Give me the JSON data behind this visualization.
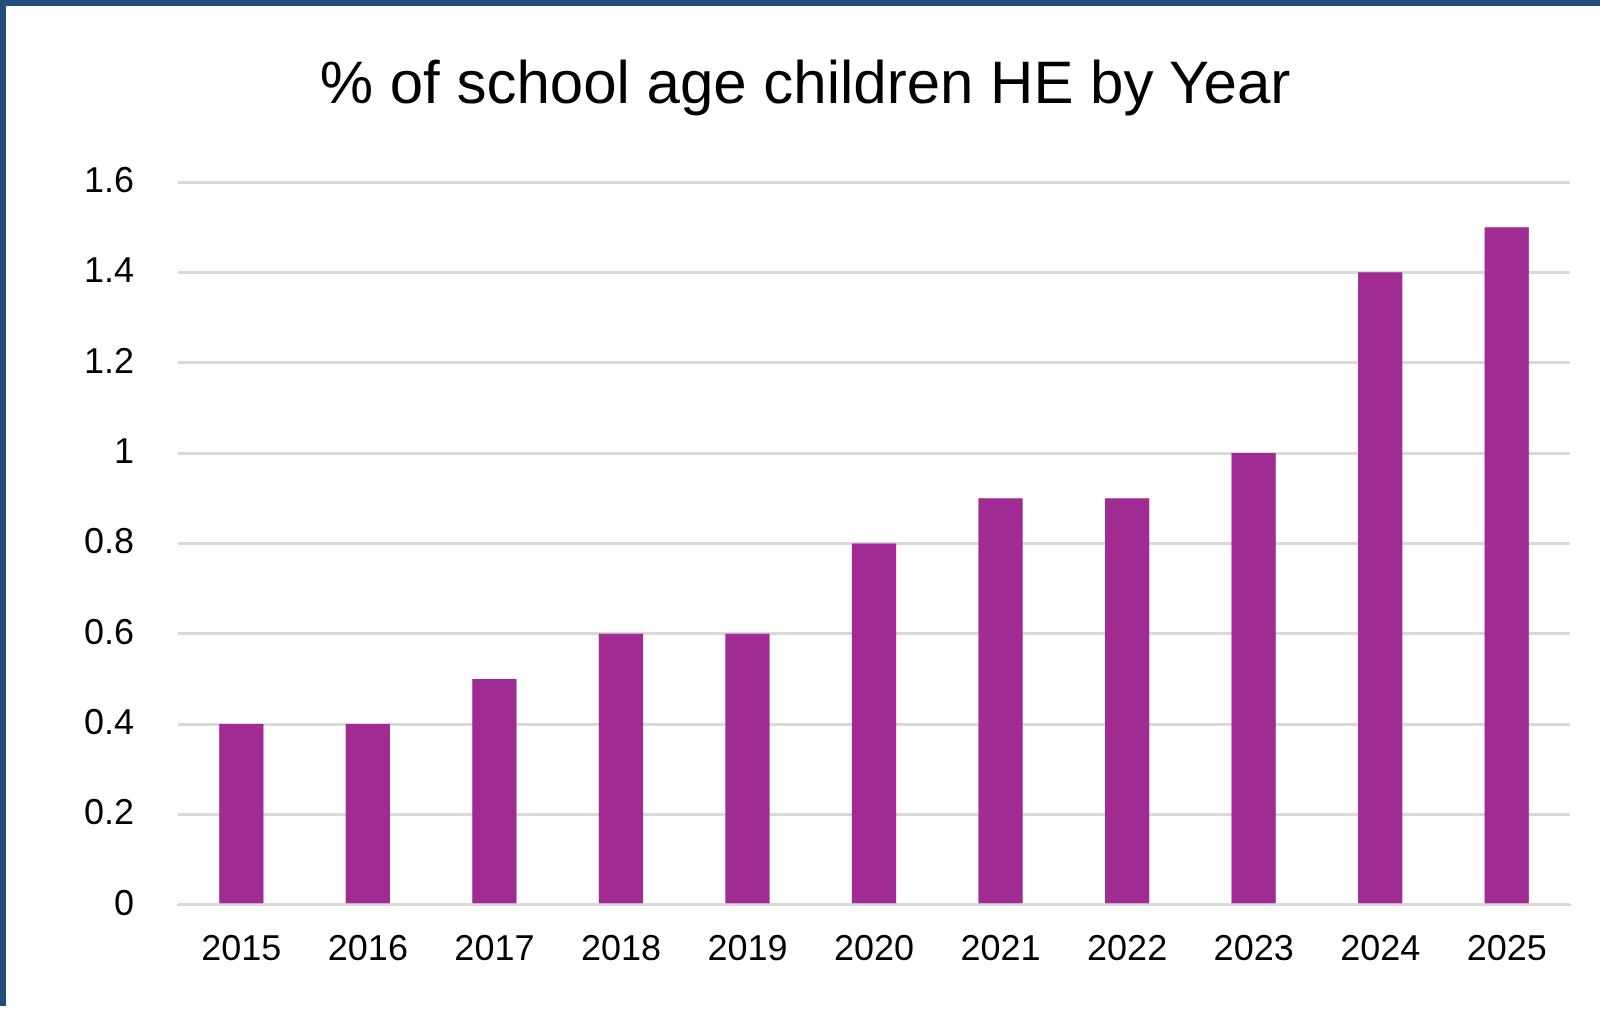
{
  "chart_data": {
    "type": "bar",
    "title": "% of school age children HE by Year",
    "categories": [
      "2015",
      "2016",
      "2017",
      "2018",
      "2019",
      "2020",
      "2021",
      "2022",
      "2023",
      "2024",
      "2025"
    ],
    "values": [
      0.4,
      0.4,
      0.5,
      0.6,
      0.6,
      0.8,
      0.9,
      0.9,
      1.0,
      1.4,
      1.5
    ],
    "color": "#a02b93",
    "ylim": [
      0,
      1.6
    ],
    "yticks": [
      0,
      0.2,
      0.4,
      0.6,
      0.8,
      1,
      1.2,
      1.4,
      1.6
    ],
    "grid": "y"
  }
}
